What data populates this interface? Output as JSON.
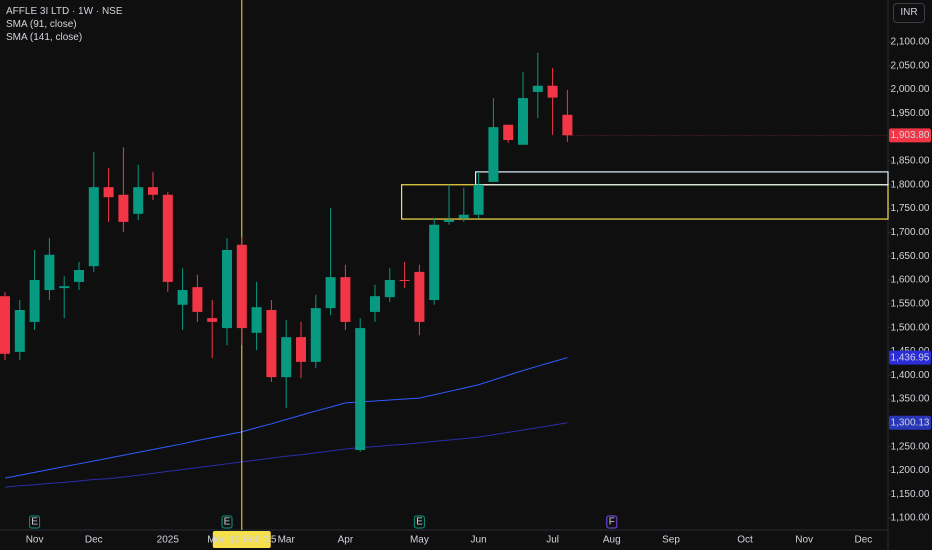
{
  "header": {
    "symbol": "AFFLE 3I LTD · 1W · NSE",
    "currency": "INR"
  },
  "chart_data": {
    "type": "candlestick",
    "categories": [
      null,
      null,
      "Nov",
      null,
      null,
      null,
      "Dec",
      null,
      null,
      null,
      null,
      "2025",
      null,
      null,
      null,
      null,
      "Mon 10 Feb '25",
      null,
      null,
      "Mar",
      null,
      null,
      null,
      "Apr",
      null,
      null,
      null,
      null,
      "May",
      null,
      null,
      null,
      "Jun",
      null,
      null,
      null,
      null,
      "Jul",
      null,
      null,
      null,
      "Aug",
      null,
      null,
      null,
      "Sep",
      null,
      null,
      null,
      null,
      "Oct",
      null,
      null,
      null,
      "Nov",
      null,
      null,
      null,
      "Dec",
      null
    ],
    "open": [
      1566,
      1449,
      1512,
      1579,
      1583,
      1596,
      1629,
      1795,
      1779,
      1739,
      1795,
      1779,
      1548,
      1585,
      1520,
      1499,
      1674,
      1489,
      1537,
      1396,
      1480,
      1428,
      1541,
      1606,
      1243,
      1533,
      1564,
      1600,
      1617,
      1558,
      1722,
      1730,
      1737,
      1806,
      1926,
      1884,
      1995,
      2008,
      1947,
      null,
      null,
      null,
      null,
      null,
      null,
      null,
      null,
      null,
      null,
      null,
      null,
      null,
      null,
      null,
      null,
      null,
      null,
      null,
      null,
      null
    ],
    "high": [
      1575,
      1558,
      1663,
      1688,
      1608,
      1638,
      1869,
      1835,
      1879,
      1842,
      1827,
      1785,
      1625,
      1611,
      1558,
      1688,
      1690,
      1596,
      1558,
      1516,
      1512,
      1569,
      1751,
      1632,
      1520,
      1590,
      1625,
      1638,
      1632,
      1730,
      1800,
      1794,
      1827,
      1982,
      1926,
      2037,
      2077,
      2045,
      1999,
      null,
      null,
      null,
      null,
      null,
      null,
      null,
      null,
      null,
      null,
      null,
      null,
      null,
      null,
      null,
      null,
      null,
      null,
      null,
      null,
      null
    ],
    "low": [
      1432,
      1432,
      1495,
      1558,
      1520,
      1579,
      1617,
      1722,
      1701,
      1726,
      1768,
      1575,
      1495,
      1512,
      1436,
      1463,
      1463,
      1453,
      1386,
      1331,
      1394,
      1415,
      1526,
      1495,
      1239,
      1512,
      1554,
      1583,
      1484,
      1548,
      1716,
      1722,
      1730,
      1806,
      1888,
      1884,
      1940,
      1905,
      1890,
      null,
      null,
      null,
      null,
      null,
      null,
      null,
      null,
      null,
      null,
      null,
      null,
      null,
      null,
      null,
      null,
      null,
      null,
      null,
      null,
      null
    ],
    "close": [
      1445,
      1537,
      1600,
      1653,
      1587,
      1621,
      1795,
      1774,
      1722,
      1795,
      1779,
      1596,
      1579,
      1533,
      1512,
      1663,
      1499,
      1543,
      1396,
      1480,
      1428,
      1541,
      1606,
      1512,
      1499,
      1566,
      1600,
      1598,
      1512,
      1716,
      1726,
      1737,
      1800,
      1921,
      1894,
      1982,
      2008,
      1983,
      1903.8,
      null,
      null,
      null,
      null,
      null,
      null,
      null,
      null,
      null,
      null,
      null,
      null,
      null,
      null,
      null,
      null,
      null,
      null,
      null,
      null,
      null
    ],
    "last_label": "1,903.80",
    "up_color": "#089981",
    "down_color": "#f23645",
    "series": [
      {
        "name": "SMA (91, close)",
        "color": "#2f5bff",
        "tag_color": "#2a2dd8",
        "last_label": "1,436.95",
        "values": [
          1184,
          1190,
          1196,
          1202,
          1208,
          1214,
          1220,
          1226,
          1232,
          1238,
          1244,
          1250,
          1256,
          1263,
          1269,
          1275,
          1281,
          1290,
          1298,
          1307,
          1316,
          1325,
          1333,
          1342,
          1344,
          1346,
          1348,
          1350,
          1352,
          1359,
          1366,
          1373,
          1380,
          1390,
          1400,
          1410,
          1419,
          1428,
          1436.95,
          null,
          null,
          null,
          null,
          null,
          null,
          null,
          null,
          null,
          null,
          null,
          null,
          null,
          null,
          null,
          null,
          null,
          null,
          null,
          null,
          null
        ]
      },
      {
        "name": "SMA (141, close)",
        "color": "#2c2ea8",
        "tag_color": "#2a36b8",
        "last_label": "1,300.13",
        "values": [
          1165,
          1168,
          1170,
          1173,
          1175,
          1178,
          1181,
          1183,
          1186,
          1190,
          1194,
          1198,
          1202,
          1206,
          1210,
          1214,
          1218,
          1222,
          1226,
          1230,
          1233,
          1237,
          1241,
          1245,
          1248,
          1250,
          1253,
          1255,
          1258,
          1261,
          1264,
          1267,
          1270,
          1275,
          1280,
          1285,
          1290,
          1295,
          1300.13,
          null,
          null,
          null,
          null,
          null,
          null,
          null,
          null,
          null,
          null,
          null,
          null,
          null,
          null,
          null,
          null,
          null,
          null,
          null,
          null,
          null
        ]
      }
    ],
    "ylim": [
      1033,
      2188
    ],
    "yticks": [
      {
        "value": 1100,
        "label": "1,100.00"
      },
      {
        "value": 1150,
        "label": "1,150.00"
      },
      {
        "value": 1200,
        "label": "1,200.00"
      },
      {
        "value": 1250,
        "label": "1,250.00"
      },
      {
        "value": 1300,
        "label": "1,300.00"
      },
      {
        "value": 1350,
        "label": "1,350.00"
      },
      {
        "value": 1400,
        "label": "1,400.00"
      },
      {
        "value": 1450,
        "label": "1,450.00"
      },
      {
        "value": 1500,
        "label": "1,500.00"
      },
      {
        "value": 1550,
        "label": "1,550.00"
      },
      {
        "value": 1600,
        "label": "1,600.00"
      },
      {
        "value": 1650,
        "label": "1,650.00"
      },
      {
        "value": 1700,
        "label": "1,700.00"
      },
      {
        "value": 1750,
        "label": "1,750.00"
      },
      {
        "value": 1800,
        "label": "1,800.00"
      },
      {
        "value": 1850,
        "label": "1,850.00"
      },
      {
        "value": 1900,
        "label": "1,900.00"
      },
      {
        "value": 1950,
        "label": "1,950.00"
      },
      {
        "value": 2000,
        "label": "2,000.00"
      },
      {
        "value": 2050,
        "label": "2,050.00"
      },
      {
        "value": 2100,
        "label": "2,100.00"
      }
    ],
    "crosshair": "Mon 10 Feb '25",
    "events": [
      {
        "label": "E",
        "index": 2
      },
      {
        "label": "E",
        "index": 15
      },
      {
        "label": "E",
        "index": 28
      },
      {
        "label": "F",
        "index": 41
      }
    ],
    "zones": [
      {
        "low": 1728,
        "high": 1800,
        "color": "#f5e04a",
        "from_index": 27
      },
      {
        "low": 1800,
        "high": 1827,
        "color": "#dff2fa",
        "from_index": 32
      }
    ]
  }
}
